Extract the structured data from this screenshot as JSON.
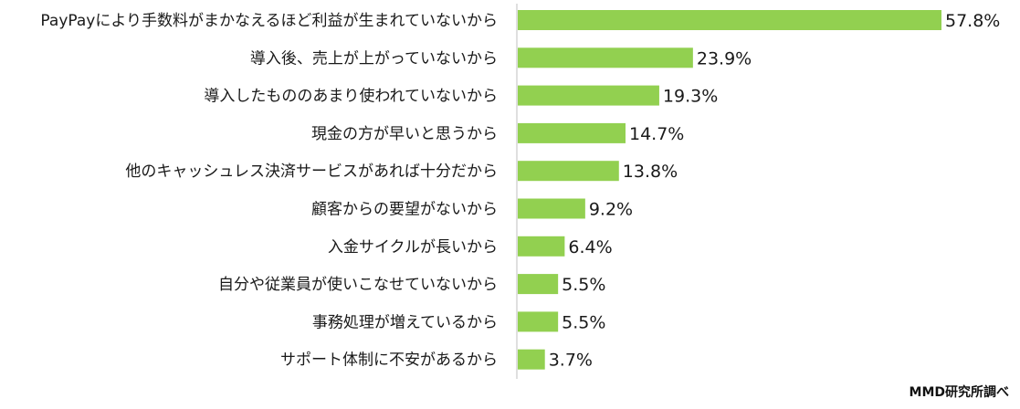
{
  "chart_data": {
    "type": "bar",
    "orientation": "horizontal",
    "categories": [
      "PayPayにより手数料がまかなえるほど利益が生まれていないから",
      "導入後、売上が上がっていないから",
      "導入したもののあまり使われていないから",
      "現金の方が早いと思うから",
      "他のキャッシュレス決済サービスがあれば十分だから",
      "顧客からの要望がないから",
      "入金サイクルが長いから",
      "自分や従業員が使いこなせていないから",
      "事務処理が増えているから",
      "サポート体制に不安があるから"
    ],
    "values": [
      57.8,
      23.9,
      19.3,
      14.7,
      13.8,
      9.2,
      6.4,
      5.5,
      5.5,
      3.7
    ],
    "value_labels": [
      "57.8%",
      "23.9%",
      "19.3%",
      "14.7%",
      "13.8%",
      "9.2%",
      "6.4%",
      "5.5%",
      "5.5%",
      "3.7%"
    ],
    "xlim": [
      0,
      57.8
    ],
    "bar_color": "#92d050",
    "axis_color": "#bfbfbf",
    "grid": false,
    "legend": "none"
  },
  "source_note": "MMD研究所調べ"
}
